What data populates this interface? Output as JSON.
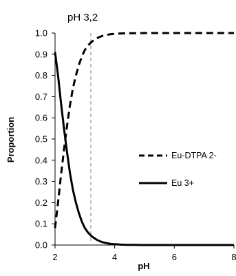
{
  "chart_data": {
    "type": "line",
    "title": "",
    "xlabel": "pH",
    "ylabel": "Proportion",
    "xlim": [
      2,
      8
    ],
    "ylim": [
      0,
      1
    ],
    "x_ticks": [
      2,
      4,
      6,
      8
    ],
    "y_ticks": [
      0.0,
      0.1,
      0.2,
      0.3,
      0.4,
      0.5,
      0.6,
      0.7,
      0.8,
      0.9,
      1.0
    ],
    "x_tick_labels": [
      "2",
      "4",
      "6",
      "8"
    ],
    "y_tick_labels": [
      "0.0",
      "0.1",
      "0.2",
      "0.3",
      "0.4",
      "0.5",
      "0.6",
      "0.7",
      "0.8",
      "0.9",
      "1.0"
    ],
    "grid": false,
    "legend_position": "right-middle",
    "annotation": {
      "text": "pH 3,2",
      "x": 3.2
    },
    "series": [
      {
        "name": "Eu-DTPA 2-",
        "style": "dashed",
        "color": "#000000",
        "x": [
          2.0,
          2.1,
          2.2,
          2.3,
          2.4,
          2.5,
          2.6,
          2.7,
          2.8,
          2.9,
          3.0,
          3.1,
          3.2,
          3.3,
          3.4,
          3.5,
          3.6,
          3.7,
          3.8,
          3.9,
          4.0,
          4.2,
          4.4,
          4.6,
          5.0,
          6.0,
          7.0,
          8.0
        ],
        "values": [
          0.08,
          0.2,
          0.33,
          0.45,
          0.56,
          0.66,
          0.74,
          0.8,
          0.85,
          0.89,
          0.92,
          0.94,
          0.955,
          0.966,
          0.975,
          0.982,
          0.987,
          0.99,
          0.993,
          0.995,
          0.996,
          0.998,
          0.999,
          0.999,
          1.0,
          1.0,
          1.0,
          1.0
        ]
      },
      {
        "name": "Eu 3+",
        "style": "solid",
        "color": "#000000",
        "x": [
          2.0,
          2.1,
          2.2,
          2.3,
          2.4,
          2.5,
          2.6,
          2.7,
          2.8,
          2.9,
          3.0,
          3.1,
          3.2,
          3.3,
          3.4,
          3.5,
          3.6,
          3.7,
          3.8,
          3.9,
          4.0,
          4.2,
          4.4,
          4.6,
          5.0,
          6.0,
          7.0,
          8.0
        ],
        "values": [
          0.91,
          0.8,
          0.67,
          0.55,
          0.44,
          0.34,
          0.26,
          0.2,
          0.15,
          0.11,
          0.08,
          0.06,
          0.045,
          0.034,
          0.025,
          0.018,
          0.013,
          0.01,
          0.007,
          0.005,
          0.004,
          0.002,
          0.001,
          0.001,
          0.0,
          0.0,
          0.0,
          0.0
        ]
      }
    ],
    "colors": {
      "axis": "#000000",
      "marker_line": "#bfbfbf"
    }
  }
}
